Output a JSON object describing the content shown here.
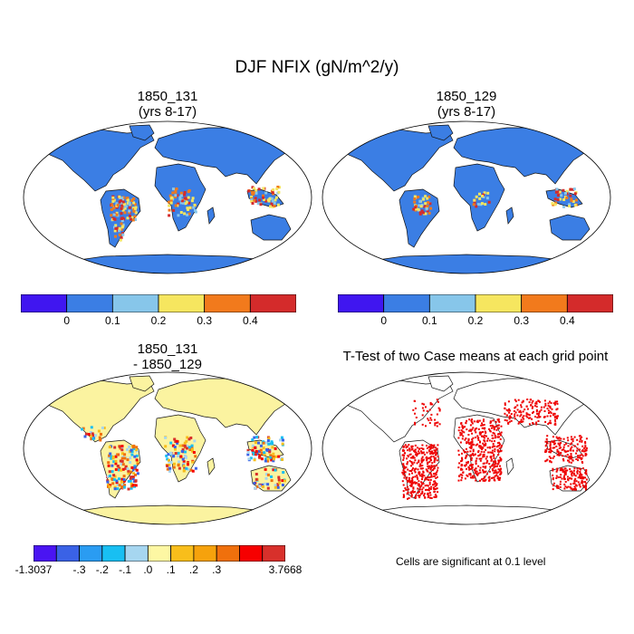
{
  "figure": {
    "title": "DJF NFIX (gN/m^2/y)",
    "panels": [
      {
        "id": "p1",
        "title_line1": "1850_131",
        "title_line2": "(yrs 8-17)"
      },
      {
        "id": "p2",
        "title_line1": "1850_129",
        "title_line2": "(yrs 8-17)"
      },
      {
        "id": "p3",
        "title_line1": "1850_131",
        "title_line2": "- 1850_129"
      },
      {
        "id": "p4",
        "title_line1": "T-Test of two Case means at each grid point",
        "title_line2": ""
      }
    ],
    "significance_note": "Cells are significant at 0.1 level"
  },
  "colorbars": {
    "absolute": {
      "colors": [
        "#4016f0",
        "#3b7ee4",
        "#87c6ea",
        "#f6e65f",
        "#f27a1c",
        "#d42b2b"
      ],
      "labels": [
        "0",
        "0.1",
        "0.2",
        "0.3",
        "0.4"
      ]
    },
    "difference": {
      "colors": [
        "#4a14f2",
        "#3a62e6",
        "#2a9cf2",
        "#18bff2",
        "#a6d6f0",
        "#fdf7a3",
        "#f8be1b",
        "#f6a20c",
        "#f0700c",
        "#f60000",
        "#d8302b"
      ],
      "labels": [
        "-1.3037",
        "-.3",
        "-.2",
        "-.1",
        ".0",
        ".1",
        ".2",
        ".3",
        "3.7668"
      ]
    }
  },
  "map_colors": {
    "ocean": "#ffffff",
    "land_low": "#3b7ee4",
    "diff_land": "#fbf3a0",
    "significant": "#ee0000"
  }
}
